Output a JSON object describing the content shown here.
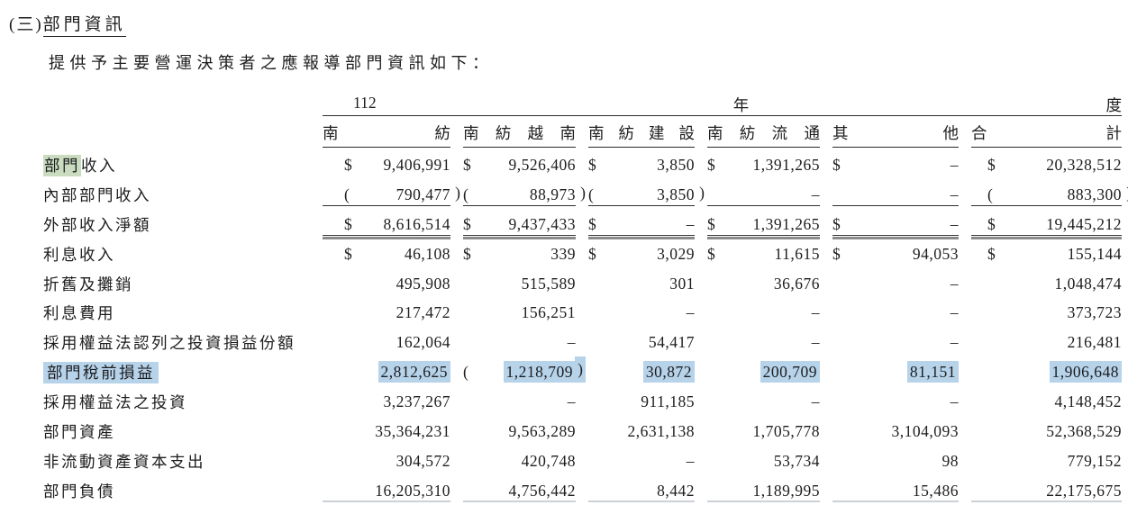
{
  "document": {
    "section_prefix": "(三)",
    "section_title": "部門資訊",
    "intro": "提供予主要營運決策者之應報導部門資訊如下："
  },
  "colors": {
    "highlight_green": "#c9dcbf",
    "highlight_blue": "#b7d3ea",
    "text": "#1d1d1f"
  },
  "table": {
    "period_parts": [
      "112",
      "年",
      "度"
    ],
    "columns": [
      "南紡",
      "南紡越南",
      "南紡建設",
      "南紡流通",
      "其他",
      "合計"
    ],
    "rows": [
      {
        "label": [
          {
            "t": "部門",
            "hl": "green"
          },
          {
            "t": "收入"
          }
        ],
        "cells": [
          {
            "pre": "$",
            "val": "9,406,991"
          },
          {
            "pre": "$",
            "val": "9,526,406"
          },
          {
            "pre": "$",
            "val": "3,850"
          },
          {
            "pre": "$",
            "val": "1,391,265"
          },
          {
            "pre": "$",
            "val": "–"
          },
          {
            "pre": "$",
            "val": "20,328,512"
          }
        ]
      },
      {
        "label": [
          {
            "t": "內部部門收入"
          }
        ],
        "cells": [
          {
            "pre": "(",
            "val": "790,477",
            "post": ")",
            "ul": "single"
          },
          {
            "pre": "(",
            "val": "88,973",
            "post": ")",
            "ul": "single"
          },
          {
            "pre": "(",
            "val": "3,850",
            "post": ")",
            "ul": "single"
          },
          {
            "val": "–",
            "ul": "single"
          },
          {
            "val": "–",
            "ul": "single"
          },
          {
            "pre": "(",
            "val": "883,300",
            "post": ")",
            "ul": "single"
          }
        ]
      },
      {
        "label": [
          {
            "t": "外部收入淨額"
          }
        ],
        "cells": [
          {
            "pre": "$",
            "val": "8,616,514",
            "ul": "double"
          },
          {
            "pre": "$",
            "val": "9,437,433",
            "ul": "double"
          },
          {
            "pre": "$",
            "val": "–",
            "ul": "double"
          },
          {
            "pre": "$",
            "val": "1,391,265",
            "ul": "double"
          },
          {
            "pre": "$",
            "val": "–",
            "ul": "double"
          },
          {
            "pre": "$",
            "val": "19,445,212",
            "ul": "double"
          }
        ]
      },
      {
        "label": [
          {
            "t": "利息收入"
          }
        ],
        "cells": [
          {
            "pre": "$",
            "val": "46,108"
          },
          {
            "pre": "$",
            "val": "339"
          },
          {
            "pre": "$",
            "val": "3,029"
          },
          {
            "pre": "$",
            "val": "11,615"
          },
          {
            "pre": "$",
            "val": "94,053"
          },
          {
            "pre": "$",
            "val": "155,144"
          }
        ]
      },
      {
        "label": [
          {
            "t": "折舊及攤銷"
          }
        ],
        "cells": [
          {
            "val": "495,908"
          },
          {
            "val": "515,589"
          },
          {
            "val": "301"
          },
          {
            "val": "36,676"
          },
          {
            "val": "–"
          },
          {
            "val": "1,048,474"
          }
        ]
      },
      {
        "label": [
          {
            "t": "利息費用"
          }
        ],
        "cells": [
          {
            "val": "217,472"
          },
          {
            "val": "156,251"
          },
          {
            "val": "–"
          },
          {
            "val": "–"
          },
          {
            "val": "–"
          },
          {
            "val": "373,723"
          }
        ]
      },
      {
        "label": [
          {
            "t": "採用權益法認列之投資損益份額"
          }
        ],
        "cells": [
          {
            "val": "162,064"
          },
          {
            "val": "–"
          },
          {
            "val": "54,417"
          },
          {
            "val": "–"
          },
          {
            "val": "–"
          },
          {
            "val": "216,481"
          }
        ]
      },
      {
        "label": [
          {
            "t": "部門稅前損益",
            "hl": "blue"
          }
        ],
        "cells": [
          {
            "val": "2,812,625",
            "hl": true
          },
          {
            "pre": "(",
            "val": "1,218,709",
            "post": ")",
            "hl": true
          },
          {
            "val": "30,872",
            "hl": true
          },
          {
            "val": "200,709",
            "hl": true
          },
          {
            "val": "81,151",
            "hl": true
          },
          {
            "val": "1,906,648",
            "hl": true
          }
        ]
      },
      {
        "label": [
          {
            "t": "採用權益法之投資"
          }
        ],
        "cells": [
          {
            "val": "3,237,267"
          },
          {
            "val": "–"
          },
          {
            "val": "911,185"
          },
          {
            "val": "–"
          },
          {
            "val": "–"
          },
          {
            "val": "4,148,452"
          }
        ]
      },
      {
        "label": [
          {
            "t": "部門資產"
          }
        ],
        "cells": [
          {
            "val": "35,364,231"
          },
          {
            "val": "9,563,289"
          },
          {
            "val": "2,631,138"
          },
          {
            "val": "1,705,778"
          },
          {
            "val": "3,104,093"
          },
          {
            "val": "52,368,529"
          }
        ]
      },
      {
        "label": [
          {
            "t": "非流動資產資本支出"
          }
        ],
        "cells": [
          {
            "val": "304,572"
          },
          {
            "val": "420,748"
          },
          {
            "val": "–"
          },
          {
            "val": "53,734"
          },
          {
            "val": "98"
          },
          {
            "val": "779,152"
          }
        ]
      },
      {
        "label": [
          {
            "t": "部門負債"
          }
        ],
        "cells": [
          {
            "val": "16,205,310",
            "ul": "faint"
          },
          {
            "val": "4,756,442",
            "ul": "faint"
          },
          {
            "val": "8,442",
            "ul": "faint"
          },
          {
            "val": "1,189,995",
            "ul": "faint"
          },
          {
            "val": "15,486",
            "ul": "faint"
          },
          {
            "val": "22,175,675",
            "ul": "faint"
          }
        ]
      }
    ]
  }
}
